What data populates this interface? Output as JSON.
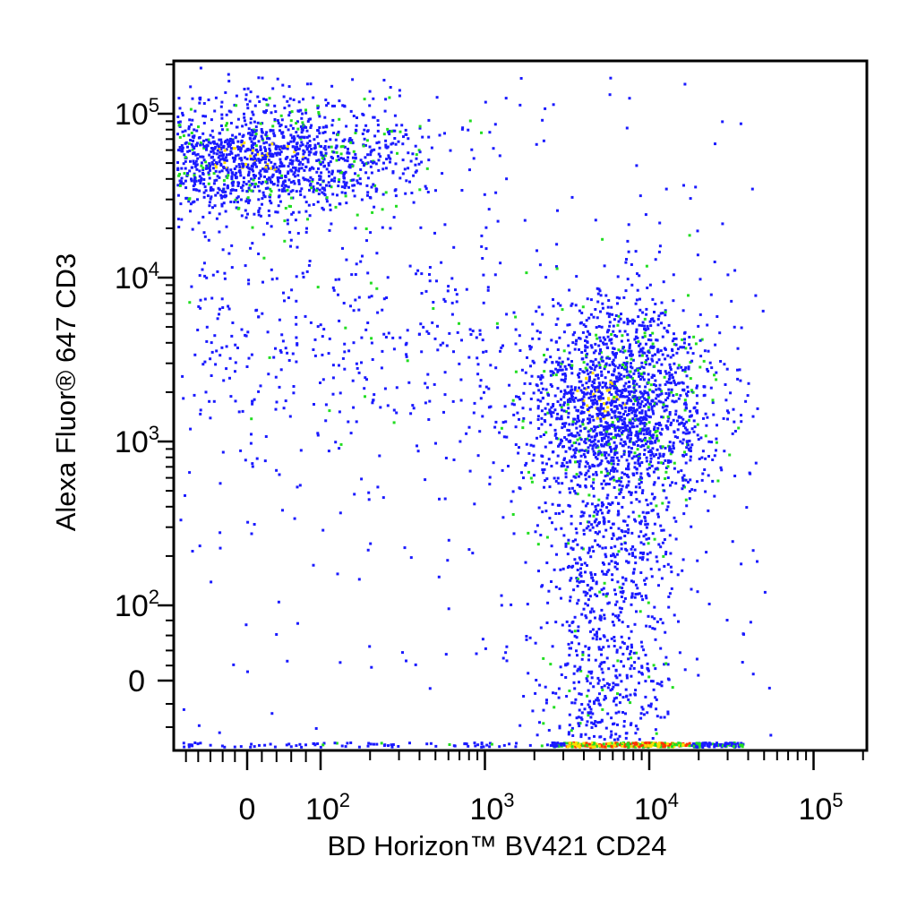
{
  "chart_data": {
    "type": "scatter",
    "subtype": "flow-cytometry-density-dot-plot",
    "title": "",
    "xlabel": "BD Horizon™ BV421 CD24",
    "ylabel": "Alexa Fluor® 647 CD3",
    "x_scale": "biexponential",
    "y_scale": "biexponential",
    "xlim": [
      -300,
      250000
    ],
    "ylim": [
      -300,
      250000
    ],
    "x_ticks": [
      {
        "value": 0,
        "base": "0",
        "exp": ""
      },
      {
        "value": 100,
        "base": "10",
        "exp": "2"
      },
      {
        "value": 1000,
        "base": "10",
        "exp": "3"
      },
      {
        "value": 10000,
        "base": "10",
        "exp": "4"
      },
      {
        "value": 100000,
        "base": "10",
        "exp": "5"
      }
    ],
    "y_ticks": [
      {
        "value": 0,
        "base": "0",
        "exp": ""
      },
      {
        "value": 100,
        "base": "10",
        "exp": "2"
      },
      {
        "value": 1000,
        "base": "10",
        "exp": "3"
      },
      {
        "value": 10000,
        "base": "10",
        "exp": "4"
      },
      {
        "value": 100000,
        "base": "10",
        "exp": "5"
      }
    ],
    "density_colors": [
      "#1a1aff",
      "#22dd22",
      "#ffdd00",
      "#ff3300"
    ],
    "populations": [
      {
        "x_center": 5,
        "y_center": 60000,
        "x_spread": 200,
        "y_spread": 0.18,
        "density": "high"
      },
      {
        "x_center": 4000,
        "y_center": 1500,
        "x_spread": 0.25,
        "y_spread": 0.35,
        "density": "high"
      },
      {
        "x_center": 8000,
        "y_center": -280,
        "x_spread": 0.2,
        "y_spread": 0,
        "density": "very-high"
      },
      {
        "x_center": 100,
        "y_center": 1500,
        "x_spread": 0.6,
        "y_spread": 0.4,
        "density": "low"
      }
    ],
    "grid": false,
    "legend": "none"
  }
}
